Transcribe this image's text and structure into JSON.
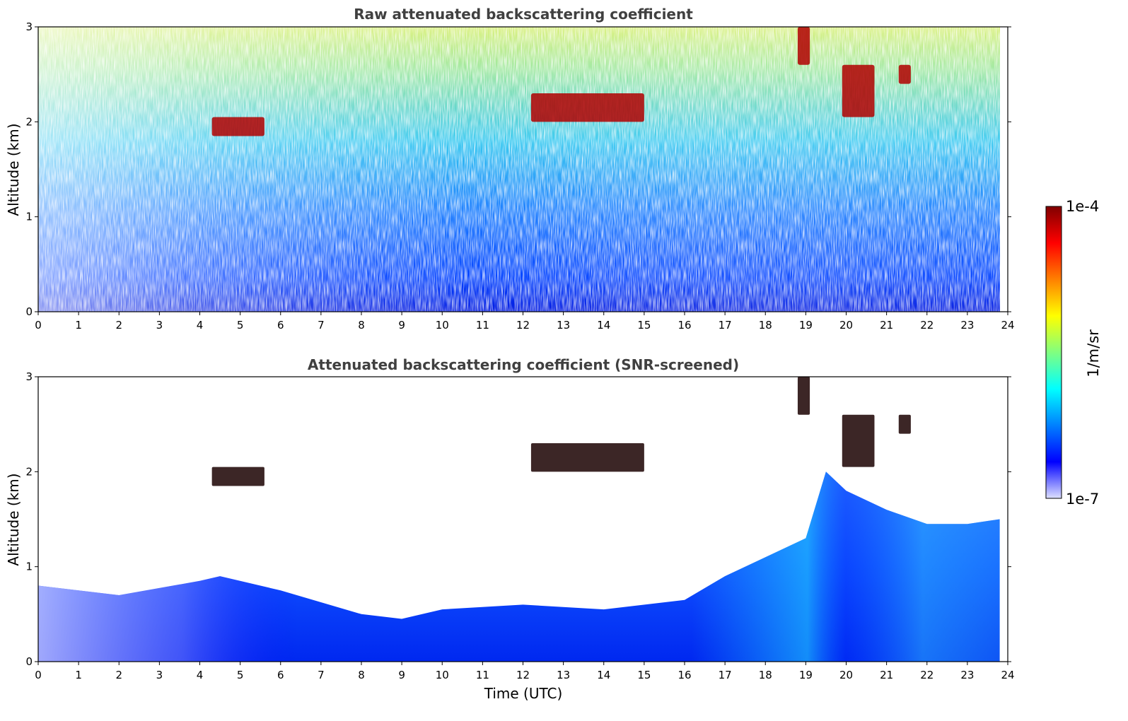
{
  "chart_data": [
    {
      "type": "heatmap",
      "title": "Raw attenuated backscattering coefficient",
      "xlabel": "",
      "ylabel": "Altitude (km)",
      "xlim": [
        0,
        24
      ],
      "ylim": [
        0,
        3
      ],
      "x_ticks": [
        "0",
        "1",
        "2",
        "3",
        "4",
        "5",
        "6",
        "7",
        "8",
        "9",
        "10",
        "11",
        "12",
        "13",
        "14",
        "15",
        "16",
        "17",
        "18",
        "19",
        "20",
        "21",
        "22",
        "23",
        "24"
      ],
      "y_ticks": [
        "0",
        "1",
        "2",
        "3"
      ],
      "features": [
        {
          "label": "cloud",
          "x_range": [
            4.3,
            5.6
          ],
          "y_range": [
            1.85,
            2.05
          ]
        },
        {
          "label": "cloud",
          "x_range": [
            12.2,
            15.0
          ],
          "y_range": [
            2.0,
            2.3
          ]
        },
        {
          "label": "cloud",
          "x_range": [
            18.8,
            19.1
          ],
          "y_range": [
            2.6,
            3.0
          ]
        },
        {
          "label": "cloud",
          "x_range": [
            19.9,
            20.7
          ],
          "y_range": [
            2.05,
            2.6
          ]
        },
        {
          "label": "cloud",
          "x_range": [
            21.3,
            21.6
          ],
          "y_range": [
            2.4,
            2.6
          ]
        }
      ]
    },
    {
      "type": "heatmap",
      "title": "Attenuated backscattering coefficient (SNR-screened)",
      "xlabel": "Time (UTC)",
      "ylabel": "Altitude (km)",
      "xlim": [
        0,
        24
      ],
      "ylim": [
        0,
        3
      ],
      "x_ticks": [
        "0",
        "1",
        "2",
        "3",
        "4",
        "5",
        "6",
        "7",
        "8",
        "9",
        "10",
        "11",
        "12",
        "13",
        "14",
        "15",
        "16",
        "17",
        "18",
        "19",
        "20",
        "21",
        "22",
        "23",
        "24"
      ],
      "y_ticks": [
        "0",
        "1",
        "2",
        "3"
      ],
      "screened_top_km": {
        "x": [
          0,
          2,
          4,
          4.5,
          6,
          8,
          9,
          10,
          12,
          14,
          16,
          17,
          18,
          19,
          19.5,
          20,
          21,
          22,
          23,
          23.8
        ],
        "y": [
          0.8,
          0.7,
          0.85,
          0.9,
          0.75,
          0.5,
          0.45,
          0.55,
          0.6,
          0.55,
          0.65,
          0.9,
          1.1,
          1.3,
          2.0,
          1.8,
          1.6,
          1.45,
          1.45,
          1.5
        ]
      }
    }
  ],
  "colorbar": {
    "max_label": "1e-4",
    "min_label": "1e-7",
    "label": "1/m/sr",
    "colors": [
      "#dde0ff",
      "#0000ff",
      "#0080ff",
      "#00ffff",
      "#80ff80",
      "#ffff00",
      "#ff8000",
      "#ff0000",
      "#800000"
    ]
  }
}
